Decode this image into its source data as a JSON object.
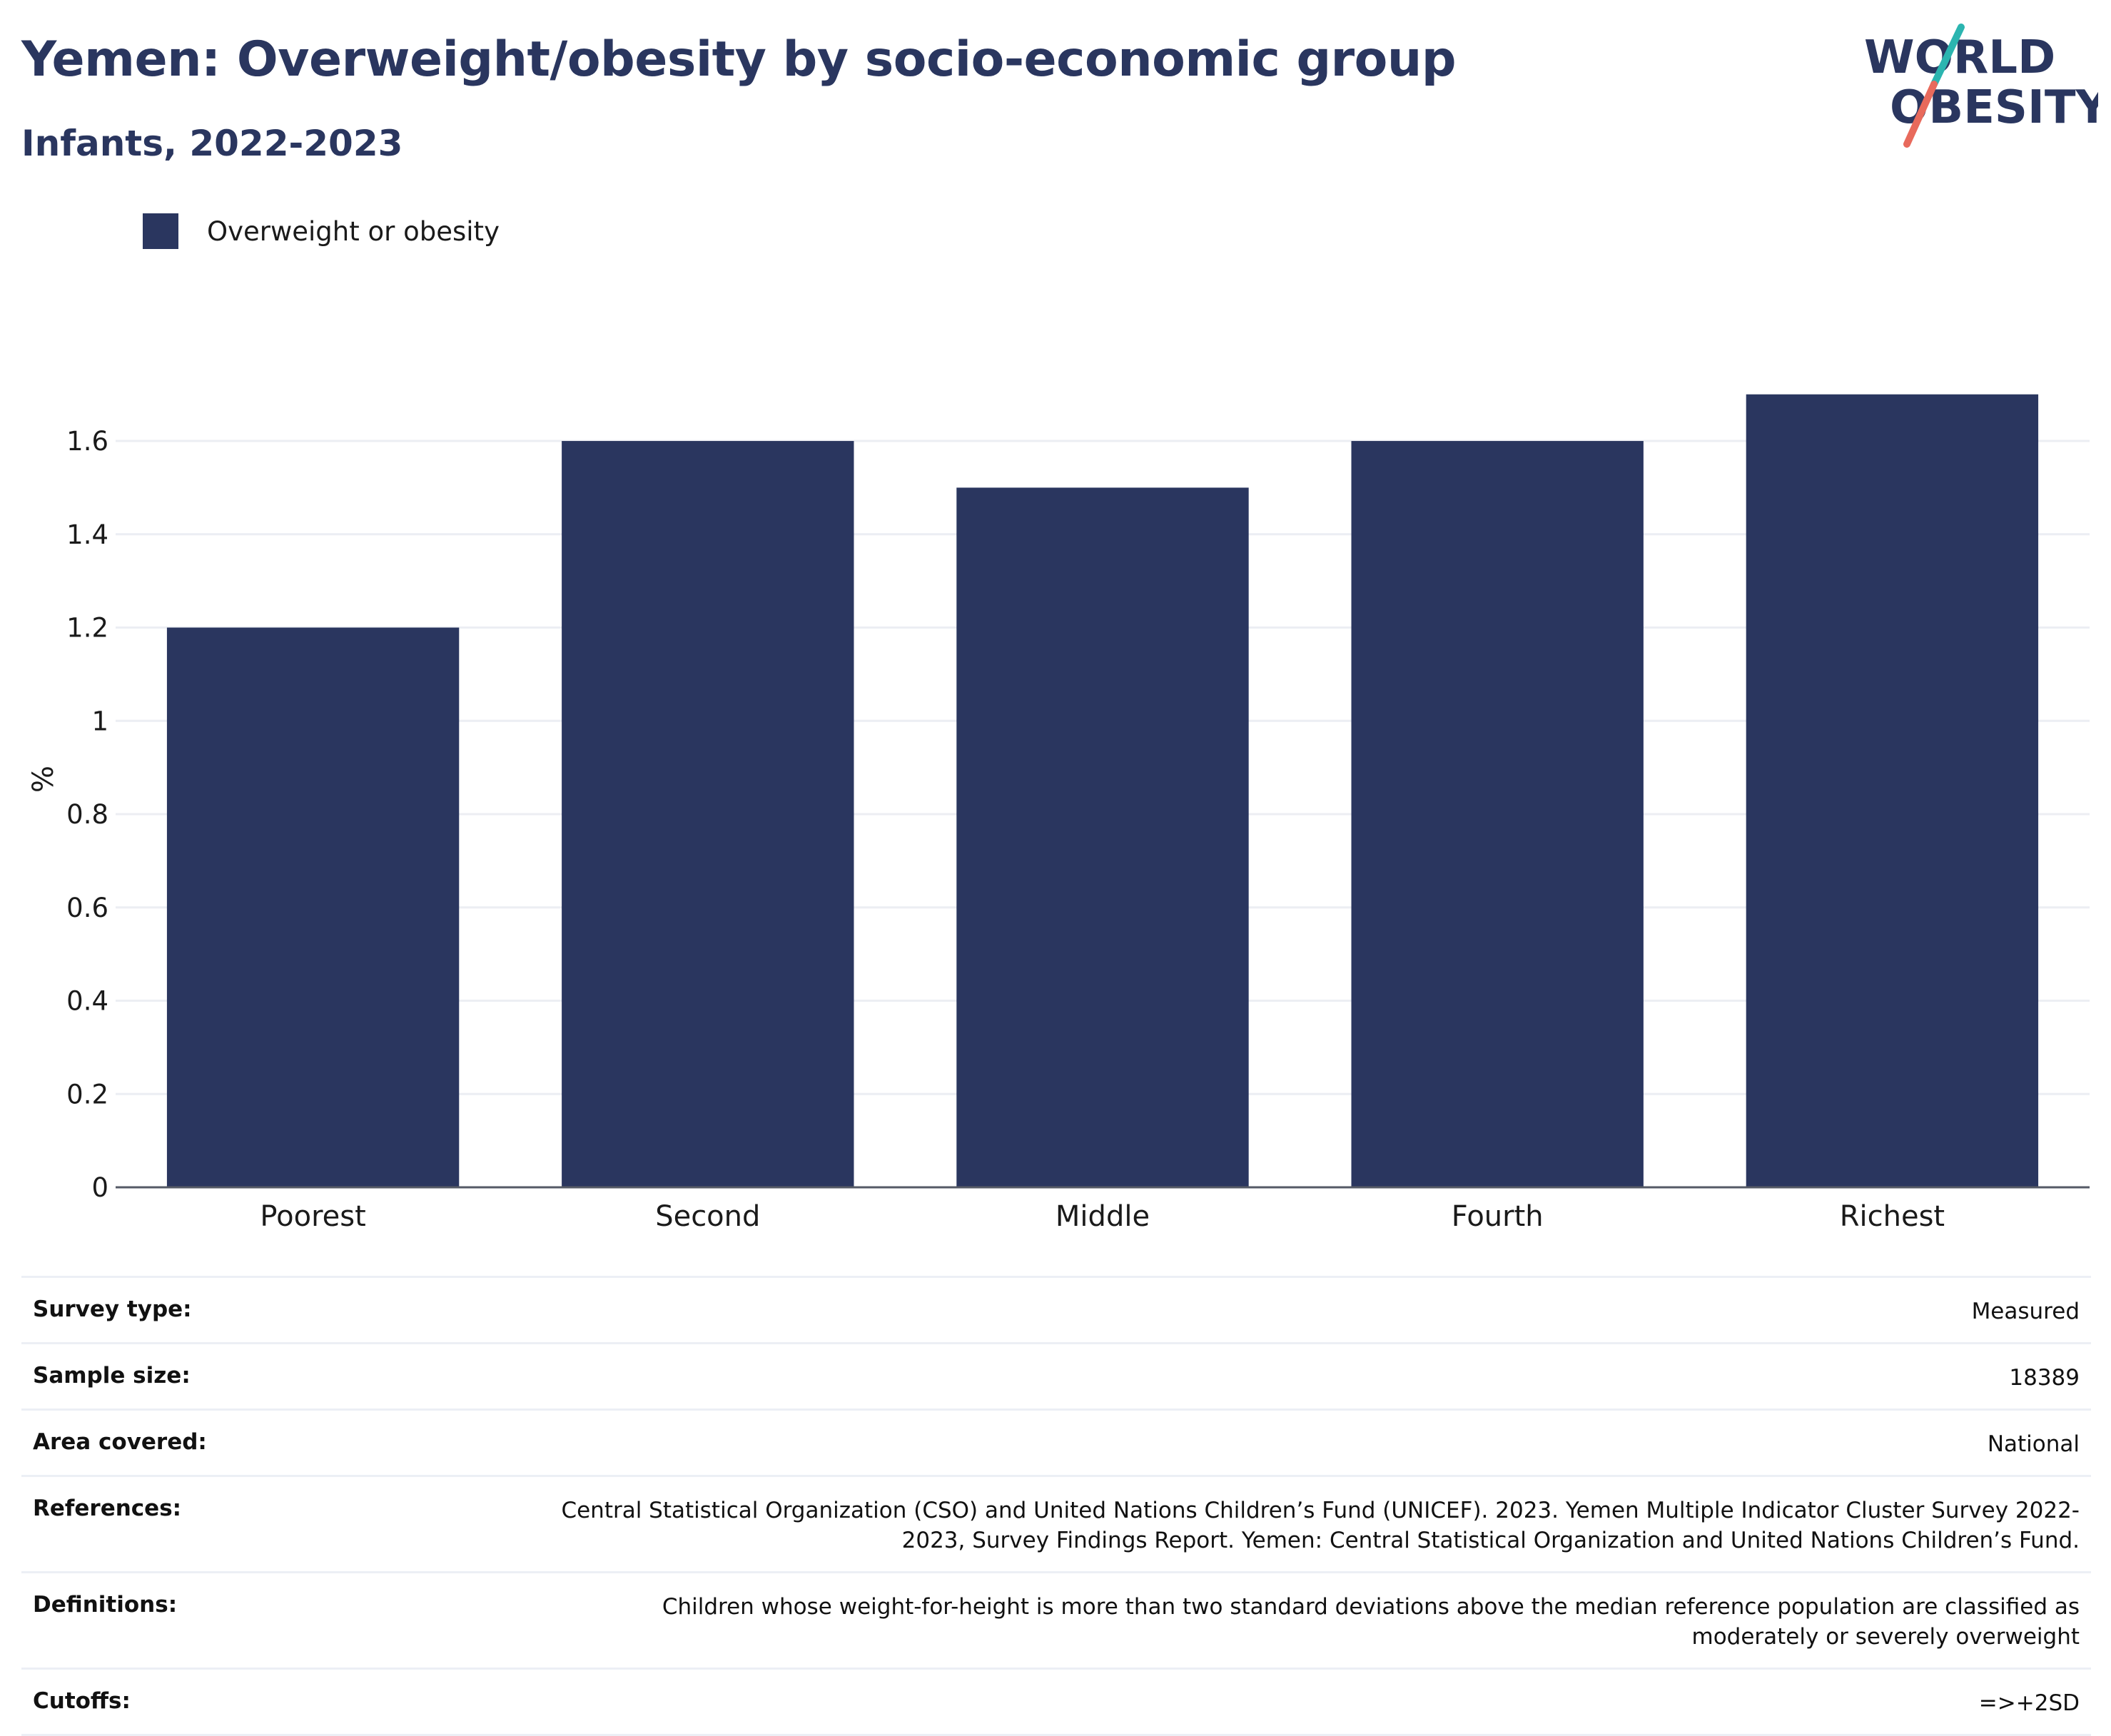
{
  "header": {
    "title": "Yemen: Overweight/obesity by socio-economic group",
    "subtitle": "Infants, 2022-2023"
  },
  "logo": {
    "line1": "WORLD",
    "line2": "OBESITY",
    "slash_colors": [
      "#2bb5b0",
      "#e86a5c"
    ],
    "text_color": "#2a365f"
  },
  "legend": {
    "items": [
      {
        "label": "Overweight or obesity",
        "color": "#2a365f"
      }
    ]
  },
  "chart_data": {
    "type": "bar",
    "categories": [
      "Poorest",
      "Second",
      "Middle",
      "Fourth",
      "Richest"
    ],
    "series": [
      {
        "name": "Overweight or obesity",
        "values": [
          1.2,
          1.6,
          1.5,
          1.6,
          1.7
        ],
        "color": "#2a365f"
      }
    ],
    "title": "Yemen: Overweight/obesity by socio-economic group",
    "subtitle": "Infants, 2022-2023",
    "xlabel": "",
    "ylabel": "%",
    "ylim": [
      0,
      1.75
    ],
    "yticks": [
      0,
      0.2,
      0.4,
      0.6,
      0.8,
      1,
      1.2,
      1.4,
      1.6
    ],
    "ytick_labels": [
      "0",
      "0.2",
      "0.4",
      "0.6",
      "0.8",
      "1",
      "1.2",
      "1.4",
      "1.6"
    ],
    "grid": true,
    "legend_position": "top-left"
  },
  "info": {
    "rows": [
      {
        "label": "Survey type:",
        "value": "Measured"
      },
      {
        "label": "Sample size:",
        "value": "18389"
      },
      {
        "label": "Area covered:",
        "value": "National"
      },
      {
        "label": "References:",
        "value": "Central Statistical Organization (CSO) and United Nations Children’s Fund (UNICEF). 2023. Yemen Multiple Indicator Cluster Survey 2022-2023, Survey Findings Report. Yemen: Central Statistical Organization and United Nations Children’s Fund."
      },
      {
        "label": "Definitions:",
        "value": "Children whose weight-for-height is more than two standard deviations above the median reference population are classified as moderately or severely overweight"
      },
      {
        "label": "Cutoffs:",
        "value": "=>+2SD"
      }
    ]
  }
}
